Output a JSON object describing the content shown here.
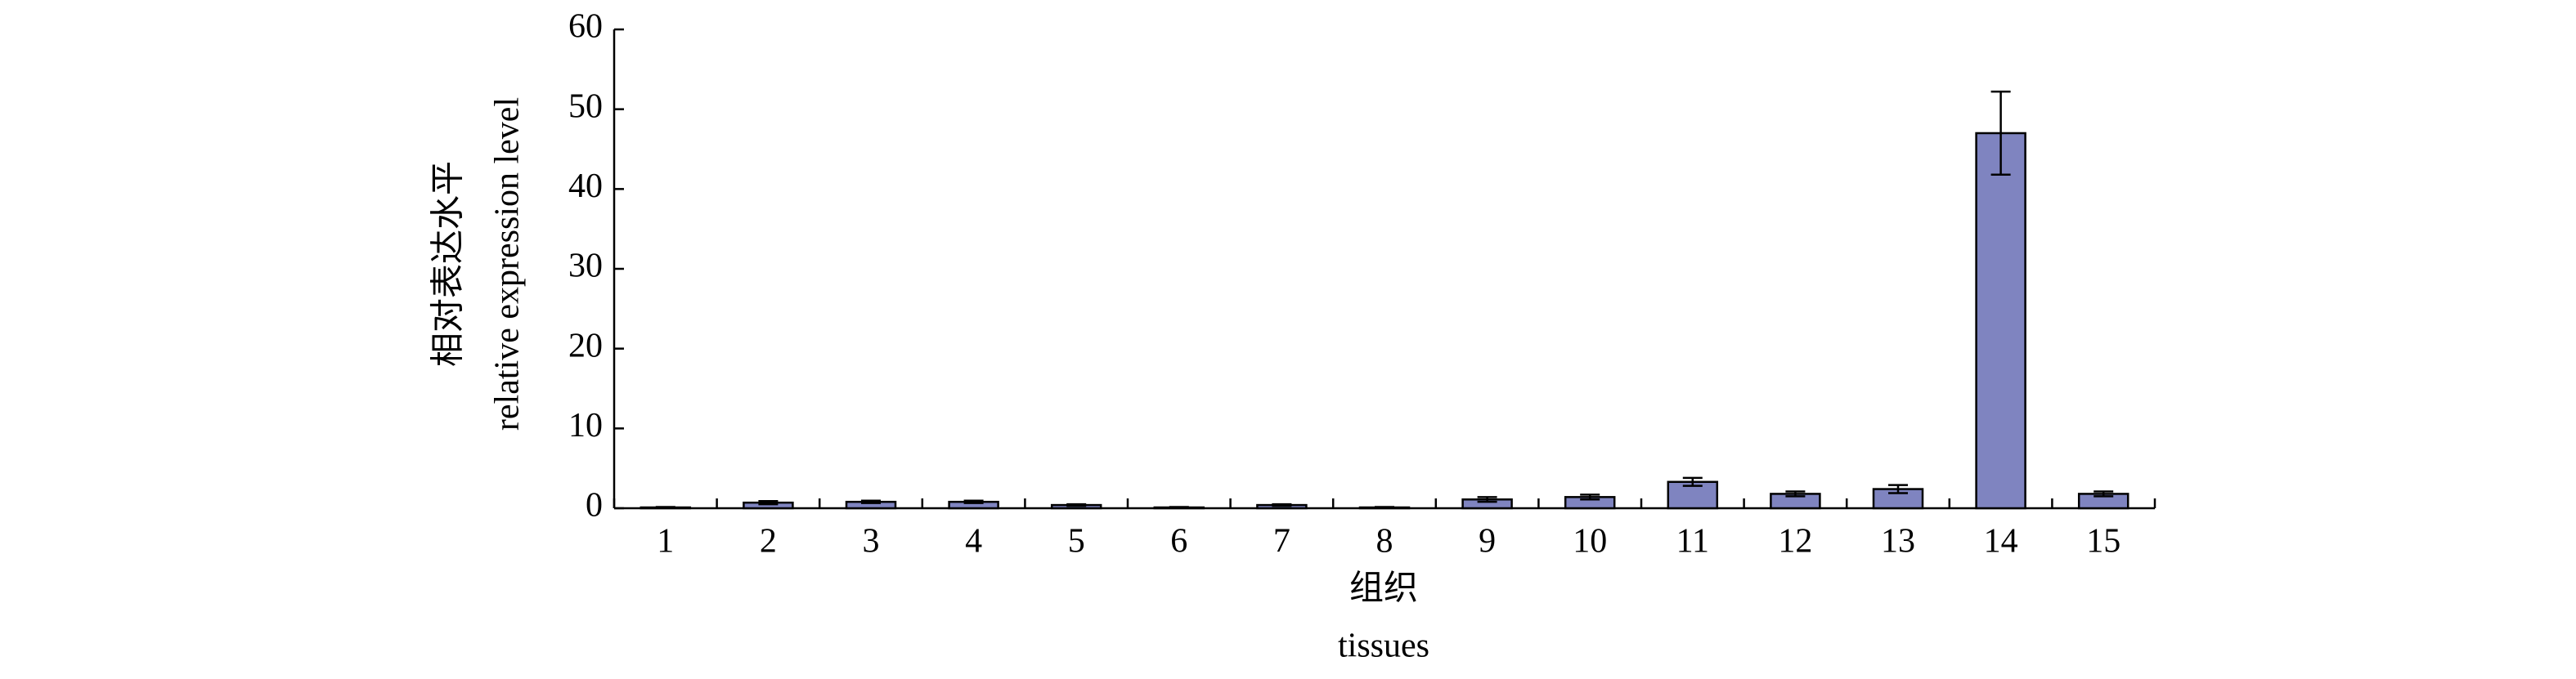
{
  "chart_data": {
    "type": "bar",
    "y_label_zh": "相对表达水平",
    "y_label_en": "relative expression level",
    "x_label_zh": "组织",
    "x_label_en": "tissues",
    "categories": [
      "1",
      "2",
      "3",
      "4",
      "5",
      "6",
      "7",
      "8",
      "9",
      "10",
      "11",
      "12",
      "13",
      "14",
      "15"
    ],
    "values": [
      0.1,
      0.7,
      0.8,
      0.8,
      0.4,
      0.1,
      0.4,
      0.1,
      1.1,
      1.4,
      3.3,
      1.8,
      2.4,
      47.0,
      1.8
    ],
    "errors": [
      0.05,
      0.2,
      0.15,
      0.15,
      0.1,
      0.05,
      0.1,
      0.05,
      0.3,
      0.3,
      0.5,
      0.3,
      0.5,
      5.2,
      0.3
    ],
    "color": "#7f84c0",
    "ylim": [
      0,
      60
    ],
    "yticks": [
      0,
      10,
      20,
      30,
      40,
      50,
      60
    ]
  }
}
